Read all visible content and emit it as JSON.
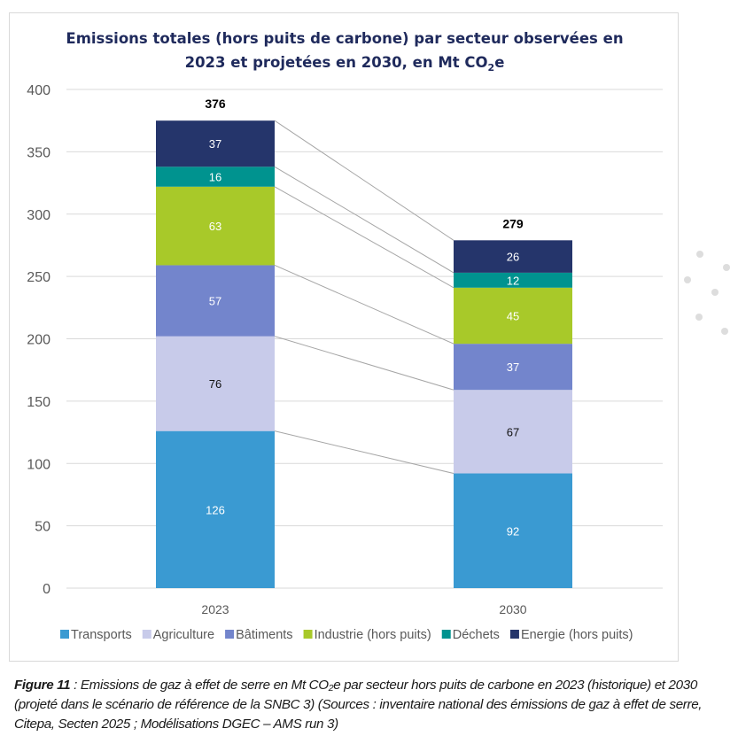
{
  "chart_data": {
    "type": "bar",
    "stacked": true,
    "title_line1": "Emissions totales (hors puits de carbone) par secteur observées en",
    "title_line2_prefix": "2023 et projetées en 2030, en Mt CO",
    "title_line2_sub": "2",
    "title_line2_suffix": "e",
    "categories": [
      "2023",
      "2030"
    ],
    "series": [
      {
        "name": "Transports",
        "color": "#3a9ad2",
        "label_color": "#ffffff",
        "values": [
          126,
          92
        ]
      },
      {
        "name": "Agriculture",
        "color": "#c8cbea",
        "label_color": "#111111",
        "values": [
          76,
          67
        ]
      },
      {
        "name": "Bâtiments",
        "color": "#7385cc",
        "label_color": "#ffffff",
        "values": [
          57,
          37
        ]
      },
      {
        "name": "Industrie (hors puits)",
        "color": "#a8c929",
        "label_color": "#ffffff",
        "values": [
          63,
          45
        ]
      },
      {
        "name": "Déchets",
        "color": "#00938f",
        "label_color": "#ffffff",
        "values": [
          16,
          12
        ]
      },
      {
        "name": "Energie (hors puits)",
        "color": "#25356b",
        "label_color": "#ffffff",
        "values": [
          37,
          26
        ]
      }
    ],
    "totals": [
      376,
      279
    ],
    "yticks": [
      0,
      50,
      100,
      150,
      200,
      250,
      300,
      350,
      400
    ],
    "ylim": [
      0,
      400
    ],
    "xlabel": "",
    "ylabel": "",
    "grid": true,
    "legend_position": "bottom",
    "connector_lines": true
  },
  "caption": {
    "figure_label": "Figure 11",
    "text": " : Emissions de gaz à effet de serre en Mt CO₂e par secteur hors puits de carbone en 2023 (historique) et 2030 (projeté dans le scénario de référence de la SNBC 3) (Sources : inventaire national des émissions de gaz à effet de serre, Citepa, Secten 2025 ; Modélisations DGEC – AMS run 3)"
  }
}
